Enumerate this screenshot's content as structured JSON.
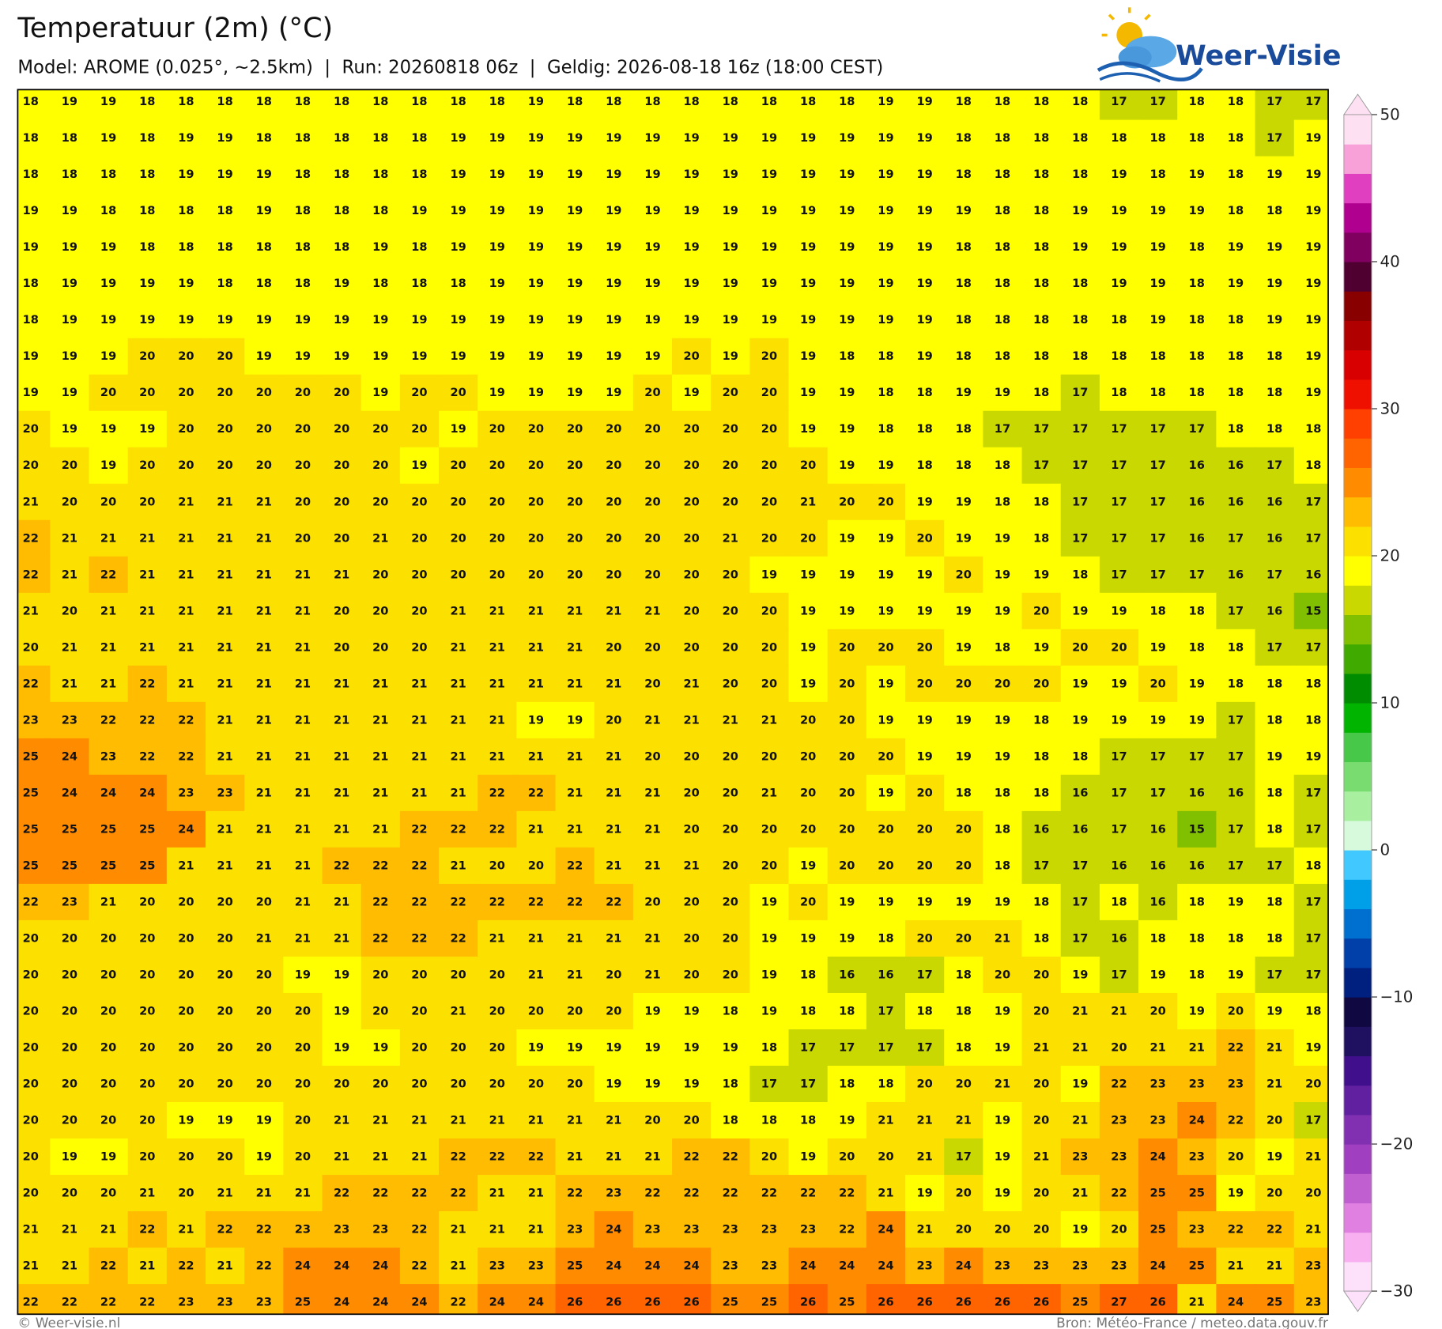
{
  "header": {
    "title": "Temperatuur (2m) (°C)",
    "subtitle": "Model: AROME (0.025°, ~2.5km)  |  Run: 20260818 06z  |  Geldig: 2026-08-18 16z (18:00 CEST)",
    "logo": "Weer-Visie"
  },
  "grid": {
    "rows": [
      [
        18,
        19,
        19,
        18,
        18,
        18,
        18,
        18,
        18,
        18,
        18,
        18,
        18,
        19,
        18,
        18,
        18,
        18,
        18,
        18,
        18,
        18,
        19,
        19,
        18,
        18,
        18,
        18,
        17,
        17,
        18,
        18,
        17,
        17
      ],
      [
        18,
        18,
        19,
        18,
        19,
        19,
        18,
        18,
        18,
        18,
        18,
        19,
        19,
        19,
        19,
        19,
        19,
        19,
        19,
        19,
        19,
        19,
        19,
        19,
        18,
        18,
        18,
        18,
        18,
        18,
        18,
        18,
        17,
        19
      ],
      [
        18,
        18,
        18,
        18,
        19,
        19,
        19,
        18,
        18,
        18,
        18,
        19,
        19,
        19,
        19,
        19,
        19,
        19,
        19,
        19,
        19,
        19,
        19,
        19,
        18,
        18,
        18,
        18,
        19,
        18,
        19,
        18,
        19,
        19
      ],
      [
        19,
        19,
        18,
        18,
        18,
        18,
        19,
        18,
        18,
        18,
        19,
        19,
        19,
        19,
        19,
        19,
        19,
        19,
        19,
        19,
        19,
        19,
        19,
        19,
        19,
        18,
        18,
        19,
        19,
        19,
        19,
        18,
        18,
        19
      ],
      [
        19,
        19,
        19,
        18,
        18,
        18,
        18,
        18,
        18,
        19,
        18,
        19,
        19,
        19,
        19,
        19,
        19,
        19,
        19,
        19,
        19,
        19,
        19,
        19,
        18,
        18,
        18,
        19,
        19,
        19,
        18,
        19,
        19,
        19
      ],
      [
        18,
        19,
        19,
        19,
        19,
        18,
        18,
        18,
        19,
        18,
        18,
        18,
        19,
        19,
        19,
        19,
        19,
        19,
        19,
        19,
        19,
        19,
        19,
        19,
        18,
        18,
        18,
        18,
        19,
        19,
        18,
        19,
        19,
        19
      ],
      [
        18,
        19,
        19,
        19,
        19,
        19,
        19,
        19,
        19,
        19,
        19,
        19,
        19,
        19,
        19,
        19,
        19,
        19,
        19,
        19,
        19,
        19,
        19,
        19,
        18,
        18,
        18,
        18,
        18,
        19,
        18,
        18,
        19,
        19
      ],
      [
        19,
        19,
        19,
        20,
        20,
        20,
        19,
        19,
        19,
        19,
        19,
        19,
        19,
        19,
        19,
        19,
        19,
        20,
        19,
        20,
        19,
        18,
        18,
        19,
        18,
        18,
        18,
        18,
        18,
        18,
        18,
        18,
        18,
        19
      ],
      [
        19,
        19,
        20,
        20,
        20,
        20,
        20,
        20,
        20,
        19,
        20,
        20,
        19,
        19,
        19,
        19,
        20,
        19,
        20,
        20,
        19,
        19,
        18,
        18,
        19,
        19,
        18,
        17,
        18,
        18,
        18,
        18,
        18,
        19
      ],
      [
        20,
        19,
        19,
        19,
        20,
        20,
        20,
        20,
        20,
        20,
        20,
        19,
        20,
        20,
        20,
        20,
        20,
        20,
        20,
        20,
        19,
        19,
        18,
        18,
        18,
        17,
        17,
        17,
        17,
        17,
        17,
        18,
        18,
        18
      ],
      [
        20,
        20,
        19,
        20,
        20,
        20,
        20,
        20,
        20,
        20,
        19,
        20,
        20,
        20,
        20,
        20,
        20,
        20,
        20,
        20,
        20,
        19,
        19,
        18,
        18,
        18,
        17,
        17,
        17,
        17,
        16,
        16,
        17,
        18
      ],
      [
        21,
        20,
        20,
        20,
        21,
        21,
        21,
        20,
        20,
        20,
        20,
        20,
        20,
        20,
        20,
        20,
        20,
        20,
        20,
        20,
        21,
        20,
        20,
        19,
        19,
        18,
        18,
        17,
        17,
        17,
        16,
        16,
        16,
        17
      ],
      [
        22,
        21,
        21,
        21,
        21,
        21,
        21,
        20,
        20,
        21,
        20,
        20,
        20,
        20,
        20,
        20,
        20,
        20,
        21,
        20,
        20,
        19,
        19,
        20,
        19,
        19,
        18,
        17,
        17,
        17,
        16,
        17,
        16,
        17
      ],
      [
        22,
        21,
        22,
        21,
        21,
        21,
        21,
        21,
        21,
        20,
        20,
        20,
        20,
        20,
        20,
        20,
        20,
        20,
        20,
        19,
        19,
        19,
        19,
        19,
        20,
        19,
        19,
        18,
        17,
        17,
        17,
        16,
        17,
        16
      ],
      [
        21,
        20,
        21,
        21,
        21,
        21,
        21,
        21,
        20,
        20,
        20,
        21,
        21,
        21,
        21,
        21,
        21,
        20,
        20,
        20,
        19,
        19,
        19,
        19,
        19,
        19,
        20,
        19,
        19,
        18,
        18,
        17,
        16,
        15
      ],
      [
        20,
        21,
        21,
        21,
        21,
        21,
        21,
        21,
        20,
        20,
        20,
        21,
        21,
        21,
        21,
        20,
        20,
        20,
        20,
        20,
        19,
        20,
        20,
        20,
        19,
        18,
        19,
        20,
        20,
        19,
        18,
        18,
        17,
        17
      ],
      [
        22,
        21,
        21,
        22,
        21,
        21,
        21,
        21,
        21,
        21,
        21,
        21,
        21,
        21,
        21,
        21,
        20,
        21,
        20,
        20,
        19,
        20,
        19,
        20,
        20,
        20,
        20,
        19,
        19,
        20,
        19,
        18,
        18,
        18
      ],
      [
        23,
        23,
        22,
        22,
        22,
        21,
        21,
        21,
        21,
        21,
        21,
        21,
        21,
        19,
        19,
        20,
        21,
        21,
        21,
        21,
        20,
        20,
        19,
        19,
        19,
        19,
        18,
        19,
        19,
        19,
        19,
        17,
        18,
        18
      ],
      [
        25,
        24,
        23,
        22,
        22,
        21,
        21,
        21,
        21,
        21,
        21,
        21,
        21,
        21,
        21,
        21,
        20,
        20,
        20,
        20,
        20,
        20,
        20,
        19,
        19,
        19,
        18,
        18,
        17,
        17,
        17,
        17,
        19,
        19
      ],
      [
        25,
        24,
        24,
        24,
        23,
        23,
        21,
        21,
        21,
        21,
        21,
        21,
        22,
        22,
        21,
        21,
        21,
        20,
        20,
        21,
        20,
        20,
        19,
        20,
        18,
        18,
        18,
        16,
        17,
        17,
        16,
        16,
        18,
        17
      ],
      [
        25,
        25,
        25,
        25,
        24,
        21,
        21,
        21,
        21,
        21,
        22,
        22,
        22,
        21,
        21,
        21,
        21,
        20,
        20,
        20,
        20,
        20,
        20,
        20,
        20,
        18,
        16,
        16,
        17,
        16,
        15,
        17,
        18,
        17
      ],
      [
        25,
        25,
        25,
        25,
        21,
        21,
        21,
        21,
        22,
        22,
        22,
        21,
        20,
        20,
        22,
        21,
        21,
        21,
        20,
        20,
        19,
        20,
        20,
        20,
        20,
        18,
        17,
        17,
        16,
        16,
        16,
        17,
        17,
        18
      ],
      [
        22,
        23,
        21,
        20,
        20,
        20,
        20,
        21,
        21,
        22,
        22,
        22,
        22,
        22,
        22,
        22,
        20,
        20,
        20,
        19,
        20,
        19,
        19,
        19,
        19,
        19,
        18,
        17,
        18,
        16,
        18,
        19,
        18,
        17
      ],
      [
        20,
        20,
        20,
        20,
        20,
        20,
        21,
        21,
        21,
        22,
        22,
        22,
        21,
        21,
        21,
        21,
        21,
        20,
        20,
        19,
        19,
        19,
        18,
        20,
        20,
        21,
        18,
        17,
        16,
        18,
        18,
        18,
        18,
        17
      ],
      [
        20,
        20,
        20,
        20,
        20,
        20,
        20,
        19,
        19,
        20,
        20,
        20,
        20,
        21,
        21,
        20,
        21,
        20,
        20,
        19,
        18,
        16,
        16,
        17,
        18,
        20,
        20,
        19,
        17,
        19,
        18,
        19,
        17,
        17
      ],
      [
        20,
        20,
        20,
        20,
        20,
        20,
        20,
        20,
        19,
        20,
        20,
        21,
        20,
        20,
        20,
        20,
        19,
        19,
        18,
        19,
        18,
        18,
        17,
        18,
        18,
        19,
        20,
        21,
        21,
        20,
        19,
        20,
        19,
        18
      ],
      [
        20,
        20,
        20,
        20,
        20,
        20,
        20,
        20,
        19,
        19,
        20,
        20,
        20,
        19,
        19,
        19,
        19,
        19,
        19,
        18,
        17,
        17,
        17,
        17,
        18,
        19,
        21,
        21,
        20,
        21,
        21,
        22,
        21,
        19
      ],
      [
        20,
        20,
        20,
        20,
        20,
        20,
        20,
        20,
        20,
        20,
        20,
        20,
        20,
        20,
        20,
        19,
        19,
        19,
        18,
        17,
        17,
        18,
        18,
        20,
        20,
        21,
        20,
        19,
        22,
        23,
        23,
        23,
        21,
        20
      ],
      [
        20,
        20,
        20,
        20,
        19,
        19,
        19,
        20,
        21,
        21,
        21,
        21,
        21,
        21,
        21,
        21,
        20,
        20,
        18,
        18,
        18,
        19,
        21,
        21,
        21,
        19,
        20,
        21,
        23,
        23,
        24,
        22,
        20,
        17
      ],
      [
        20,
        19,
        19,
        20,
        20,
        20,
        19,
        20,
        21,
        21,
        21,
        22,
        22,
        22,
        21,
        21,
        21,
        22,
        22,
        20,
        19,
        20,
        20,
        21,
        17,
        19,
        21,
        23,
        23,
        24,
        23,
        20,
        19,
        21
      ],
      [
        20,
        20,
        20,
        21,
        20,
        21,
        21,
        21,
        22,
        22,
        22,
        22,
        21,
        21,
        22,
        23,
        22,
        22,
        22,
        22,
        22,
        22,
        21,
        19,
        20,
        19,
        20,
        21,
        22,
        25,
        25,
        19,
        20,
        20
      ],
      [
        21,
        21,
        21,
        22,
        21,
        22,
        22,
        23,
        23,
        23,
        22,
        21,
        21,
        21,
        23,
        24,
        23,
        23,
        23,
        23,
        23,
        22,
        24,
        21,
        20,
        20,
        20,
        19,
        20,
        25,
        23,
        22,
        22,
        21
      ],
      [
        21,
        21,
        22,
        21,
        22,
        21,
        22,
        24,
        24,
        24,
        22,
        21,
        23,
        23,
        25,
        24,
        24,
        24,
        23,
        23,
        24,
        24,
        24,
        23,
        24,
        23,
        23,
        23,
        23,
        24,
        25,
        21,
        21,
        23
      ],
      [
        22,
        22,
        22,
        22,
        23,
        23,
        23,
        25,
        24,
        24,
        24,
        22,
        24,
        24,
        26,
        26,
        26,
        26,
        25,
        25,
        26,
        25,
        26,
        26,
        26,
        26,
        26,
        25,
        27,
        26,
        21,
        24,
        25,
        23
      ]
    ]
  },
  "colorbar": {
    "lim": [
      -30,
      50
    ],
    "ticks": [
      {
        "value": -30,
        "label": "−30"
      },
      {
        "value": -20,
        "label": "−20"
      },
      {
        "value": -10,
        "label": "−10"
      },
      0,
      10,
      20,
      30,
      40,
      50
    ],
    "colors": [
      "#fde0fa",
      "#f8b0f0",
      "#e080e0",
      "#c060d0",
      "#a040c0",
      "#8030b0",
      "#6020a0",
      "#40108c",
      "#201060",
      "#100840",
      "#002080",
      "#0040a8",
      "#0070d0",
      "#00a0e8",
      "#40c8ff",
      "#d8fadc",
      "#a8f0a0",
      "#78dc70",
      "#48c848",
      "#00b400",
      "#008c00",
      "#40aa00",
      "#80c000",
      "#c8d800",
      "#ffff00",
      "#fce000",
      "#ffbc00",
      "#ff8c00",
      "#ff6400",
      "#ff4000",
      "#f01000",
      "#d80000",
      "#b00000",
      "#880000",
      "#500030",
      "#800060",
      "#b00090",
      "#e040c0",
      "#f8a0d8",
      "#fde0f2"
    ]
  },
  "footer": {
    "left": "© Weer-visie.nl",
    "right": "Bron: Météo-France / meteo.data.gouv.fr"
  }
}
